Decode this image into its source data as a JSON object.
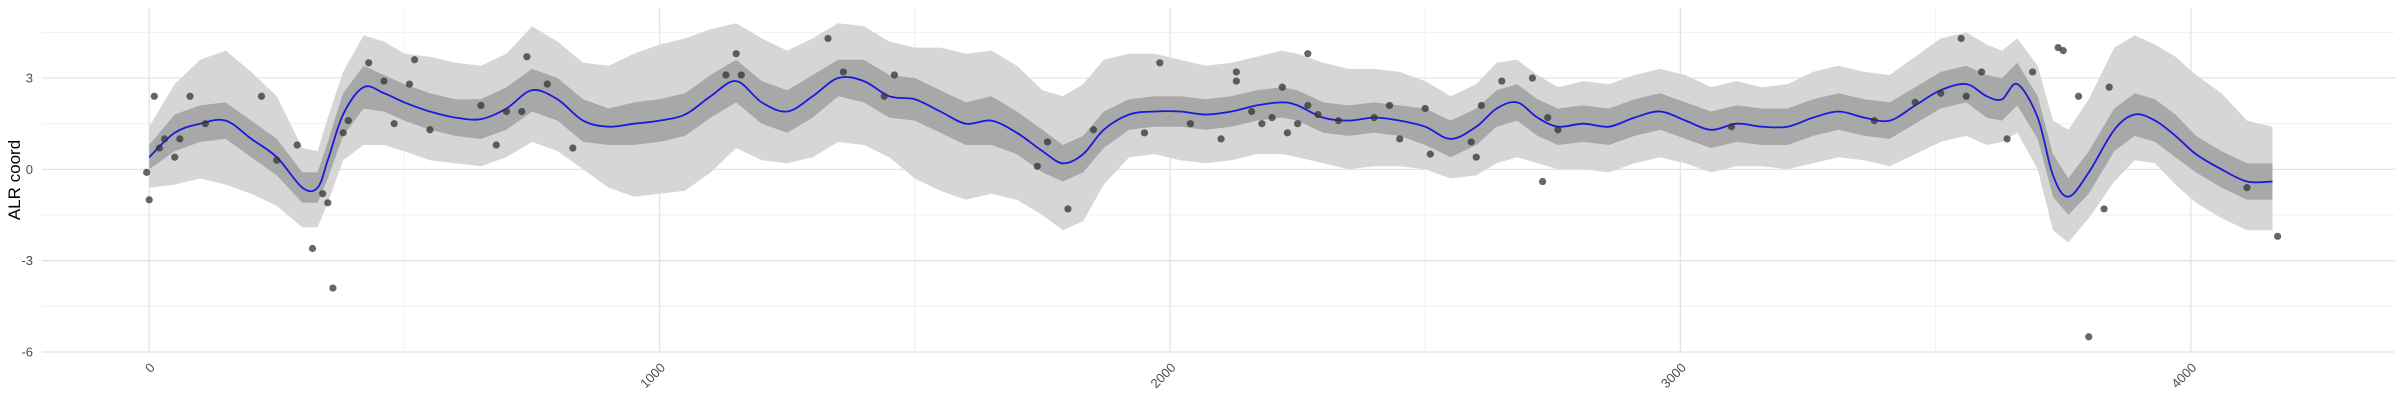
{
  "chart_data": {
    "type": "line",
    "title": "",
    "xlabel": "",
    "ylabel": "ALR coord",
    "xlim": [
      -210,
      4400
    ],
    "ylim": [
      -6,
      5.3
    ],
    "x_ticks": [
      0,
      1000,
      2000,
      3000,
      4000
    ],
    "x_tick_labels": [
      "0",
      "1000",
      "2000",
      "3000",
      "4000"
    ],
    "y_ticks": [
      -6,
      -3,
      0,
      3
    ],
    "y_tick_labels": [
      "-6",
      "-3",
      "0",
      "3"
    ],
    "grid": true,
    "legend": "none",
    "colors": {
      "line": "#1a1adc",
      "inner_band": "#a8a8a8",
      "outer_band": "#d6d6d6",
      "points": "#333333",
      "grid_major": "#e3e3e3",
      "grid_minor": "#f1f1f1"
    },
    "series": [
      {
        "type": "line",
        "x": [
          0,
          50,
          100,
          150,
          200,
          250,
          300,
          330,
          350,
          380,
          420,
          460,
          500,
          550,
          600,
          650,
          700,
          750,
          800,
          850,
          900,
          950,
          1000,
          1050,
          1100,
          1150,
          1200,
          1250,
          1300,
          1350,
          1400,
          1450,
          1500,
          1550,
          1600,
          1650,
          1700,
          1750,
          1790,
          1830,
          1870,
          1920,
          1970,
          2020,
          2070,
          2120,
          2170,
          2220,
          2250,
          2300,
          2350,
          2400,
          2450,
          2500,
          2550,
          2600,
          2640,
          2680,
          2720,
          2760,
          2810,
          2860,
          2910,
          2960,
          3010,
          3060,
          3110,
          3160,
          3210,
          3260,
          3310,
          3360,
          3410,
          3460,
          3510,
          3560,
          3600,
          3630,
          3660,
          3700,
          3730,
          3760,
          3800,
          3850,
          3890,
          3930,
          3970,
          4010,
          4060,
          4110,
          4160
        ],
        "y": [
          0.4,
          1.2,
          1.5,
          1.6,
          1.0,
          0.4,
          -0.6,
          -0.6,
          0.3,
          1.8,
          2.7,
          2.5,
          2.2,
          1.9,
          1.7,
          1.65,
          2.0,
          2.6,
          2.3,
          1.6,
          1.4,
          1.5,
          1.6,
          1.8,
          2.4,
          2.9,
          2.2,
          1.9,
          2.4,
          3.0,
          2.9,
          2.4,
          2.3,
          1.9,
          1.5,
          1.6,
          1.2,
          0.6,
          0.2,
          0.5,
          1.3,
          1.8,
          1.9,
          1.9,
          1.8,
          1.9,
          2.1,
          2.2,
          2.1,
          1.7,
          1.6,
          1.7,
          1.6,
          1.4,
          1.0,
          1.4,
          2.0,
          2.2,
          1.7,
          1.4,
          1.5,
          1.4,
          1.7,
          1.9,
          1.6,
          1.3,
          1.5,
          1.4,
          1.4,
          1.7,
          1.9,
          1.7,
          1.6,
          2.1,
          2.6,
          2.8,
          2.4,
          2.3,
          2.8,
          1.7,
          -0.2,
          -0.9,
          -0.1,
          1.3,
          1.8,
          1.6,
          1.1,
          0.5,
          0.0,
          -0.4,
          -0.4
        ],
        "lower_inner": [
          0.0,
          0.6,
          0.9,
          1.0,
          0.4,
          -0.2,
          -1.1,
          -1.1,
          -0.3,
          1.1,
          2.0,
          1.9,
          1.6,
          1.3,
          1.1,
          1.0,
          1.3,
          1.9,
          1.6,
          0.9,
          0.8,
          0.8,
          0.9,
          1.1,
          1.7,
          2.2,
          1.5,
          1.2,
          1.7,
          2.4,
          2.2,
          1.7,
          1.6,
          1.2,
          0.8,
          0.8,
          0.5,
          -0.1,
          -0.4,
          -0.1,
          0.7,
          1.3,
          1.4,
          1.4,
          1.3,
          1.4,
          1.6,
          1.7,
          1.6,
          1.2,
          1.1,
          1.2,
          1.1,
          0.8,
          0.4,
          0.8,
          1.4,
          1.6,
          1.1,
          0.8,
          0.9,
          0.8,
          1.1,
          1.3,
          1.0,
          0.7,
          0.9,
          0.8,
          0.8,
          1.1,
          1.3,
          1.1,
          1.0,
          1.5,
          2.0,
          2.2,
          1.7,
          1.6,
          2.1,
          1.0,
          -0.9,
          -1.5,
          -0.8,
          0.6,
          1.1,
          0.9,
          0.4,
          -0.1,
          -0.6,
          -1.0,
          -1.0
        ],
        "upper_inner": [
          0.8,
          1.8,
          2.1,
          2.2,
          1.6,
          1.0,
          -0.1,
          -0.1,
          0.9,
          2.5,
          3.4,
          3.1,
          2.8,
          2.5,
          2.3,
          2.3,
          2.7,
          3.3,
          3.0,
          2.3,
          2.0,
          2.2,
          2.3,
          2.5,
          3.1,
          3.6,
          2.9,
          2.6,
          3.1,
          3.6,
          3.6,
          3.1,
          3.0,
          2.6,
          2.2,
          2.4,
          1.9,
          1.3,
          0.8,
          1.1,
          1.9,
          2.3,
          2.4,
          2.4,
          2.3,
          2.4,
          2.6,
          2.7,
          2.6,
          2.2,
          2.1,
          2.2,
          2.1,
          2.0,
          1.6,
          2.0,
          2.6,
          2.8,
          2.3,
          2.0,
          2.1,
          2.0,
          2.3,
          2.5,
          2.2,
          1.9,
          2.1,
          2.0,
          2.0,
          2.3,
          2.5,
          2.3,
          2.2,
          2.7,
          3.2,
          3.4,
          3.1,
          3.0,
          3.5,
          2.4,
          0.5,
          -0.3,
          0.6,
          2.0,
          2.5,
          2.3,
          1.8,
          1.1,
          0.6,
          0.2,
          0.2
        ],
        "lower_outer": [
          -0.6,
          -0.5,
          -0.3,
          -0.5,
          -0.8,
          -1.2,
          -1.9,
          -1.9,
          -1.1,
          0.3,
          0.8,
          0.8,
          0.6,
          0.3,
          0.2,
          0.1,
          0.4,
          0.9,
          0.6,
          0.0,
          -0.6,
          -0.9,
          -0.8,
          -0.7,
          -0.1,
          0.7,
          0.3,
          0.2,
          0.4,
          0.9,
          0.8,
          0.4,
          -0.3,
          -0.7,
          -1.0,
          -0.8,
          -1.0,
          -1.5,
          -2.0,
          -1.7,
          -0.5,
          0.4,
          0.5,
          0.3,
          0.2,
          0.3,
          0.5,
          0.5,
          0.4,
          0.2,
          0.0,
          0.1,
          0.1,
          0.0,
          -0.3,
          -0.2,
          0.2,
          0.4,
          0.2,
          0.0,
          0.0,
          -0.1,
          0.2,
          0.4,
          0.2,
          -0.1,
          0.1,
          0.1,
          0.0,
          0.2,
          0.4,
          0.3,
          0.1,
          0.5,
          0.9,
          1.1,
          0.8,
          0.9,
          1.2,
          0.0,
          -2.0,
          -2.4,
          -1.6,
          -0.4,
          0.3,
          0.2,
          -0.5,
          -1.1,
          -1.6,
          -2.0,
          -2.0
        ],
        "upper_outer": [
          1.4,
          2.8,
          3.6,
          3.9,
          3.2,
          2.4,
          0.7,
          0.6,
          1.7,
          3.2,
          4.4,
          4.2,
          3.8,
          3.7,
          3.5,
          3.4,
          3.8,
          4.7,
          4.2,
          3.5,
          3.4,
          3.8,
          4.1,
          4.3,
          4.6,
          4.8,
          4.3,
          3.9,
          4.3,
          4.8,
          4.7,
          4.2,
          4.0,
          4.0,
          3.8,
          3.9,
          3.4,
          2.6,
          2.4,
          2.8,
          3.6,
          3.8,
          3.8,
          3.6,
          3.4,
          3.5,
          3.7,
          3.9,
          3.8,
          3.5,
          3.3,
          3.3,
          3.2,
          2.9,
          2.4,
          2.8,
          3.5,
          3.6,
          3.1,
          2.7,
          2.9,
          2.8,
          3.1,
          3.3,
          3.1,
          2.7,
          2.9,
          2.7,
          2.8,
          3.2,
          3.4,
          3.2,
          3.1,
          3.7,
          4.3,
          4.5,
          4.1,
          3.9,
          4.3,
          3.4,
          1.6,
          1.3,
          2.3,
          4.0,
          4.4,
          4.1,
          3.7,
          3.1,
          2.5,
          1.6,
          1.4
        ]
      },
      {
        "type": "scatter",
        "points": [
          [
            -5,
            -0.1
          ],
          [
            0,
            -1.0
          ],
          [
            10,
            2.4
          ],
          [
            20,
            0.7
          ],
          [
            30,
            1.0
          ],
          [
            50,
            0.4
          ],
          [
            60,
            1.0
          ],
          [
            80,
            2.4
          ],
          [
            110,
            1.5
          ],
          [
            220,
            2.4
          ],
          [
            250,
            0.3
          ],
          [
            290,
            0.8
          ],
          [
            320,
            -2.6
          ],
          [
            340,
            -0.8
          ],
          [
            350,
            -1.1
          ],
          [
            360,
            -3.9
          ],
          [
            380,
            1.2
          ],
          [
            390,
            1.6
          ],
          [
            430,
            3.5
          ],
          [
            460,
            2.9
          ],
          [
            480,
            1.5
          ],
          [
            510,
            2.8
          ],
          [
            520,
            3.6
          ],
          [
            550,
            1.3
          ],
          [
            650,
            2.1
          ],
          [
            680,
            0.8
          ],
          [
            700,
            1.9
          ],
          [
            730,
            1.9
          ],
          [
            740,
            3.7
          ],
          [
            780,
            2.8
          ],
          [
            830,
            0.7
          ],
          [
            1130,
            3.1
          ],
          [
            1150,
            3.8
          ],
          [
            1160,
            3.1
          ],
          [
            1330,
            4.3
          ],
          [
            1360,
            3.2
          ],
          [
            1440,
            2.4
          ],
          [
            1460,
            3.1
          ],
          [
            1740,
            0.1
          ],
          [
            1760,
            0.9
          ],
          [
            1800,
            -1.3
          ],
          [
            1850,
            1.3
          ],
          [
            1950,
            1.2
          ],
          [
            1980,
            3.5
          ],
          [
            2040,
            1.5
          ],
          [
            2100,
            1.0
          ],
          [
            2130,
            3.2
          ],
          [
            2130,
            2.9
          ],
          [
            2160,
            1.9
          ],
          [
            2180,
            1.5
          ],
          [
            2200,
            1.7
          ],
          [
            2220,
            2.7
          ],
          [
            2230,
            1.2
          ],
          [
            2250,
            1.5
          ],
          [
            2270,
            2.1
          ],
          [
            2270,
            3.8
          ],
          [
            2290,
            1.8
          ],
          [
            2330,
            1.6
          ],
          [
            2400,
            1.7
          ],
          [
            2430,
            2.1
          ],
          [
            2450,
            1.0
          ],
          [
            2500,
            2.0
          ],
          [
            2510,
            0.5
          ],
          [
            2590,
            0.9
          ],
          [
            2600,
            0.4
          ],
          [
            2610,
            2.1
          ],
          [
            2650,
            2.9
          ],
          [
            2710,
            3.0
          ],
          [
            2730,
            -0.4
          ],
          [
            2740,
            1.7
          ],
          [
            2760,
            1.3
          ],
          [
            3100,
            1.4
          ],
          [
            3380,
            1.6
          ],
          [
            3460,
            2.2
          ],
          [
            3510,
            2.5
          ],
          [
            3550,
            4.3
          ],
          [
            3560,
            2.4
          ],
          [
            3590,
            3.2
          ],
          [
            3640,
            1.0
          ],
          [
            3690,
            3.2
          ],
          [
            3740,
            4.0
          ],
          [
            3750,
            3.9
          ],
          [
            3780,
            2.4
          ],
          [
            3800,
            -5.5
          ],
          [
            3830,
            -1.3
          ],
          [
            3840,
            2.7
          ],
          [
            4110,
            -0.6
          ],
          [
            4170,
            -2.2
          ]
        ]
      }
    ]
  }
}
